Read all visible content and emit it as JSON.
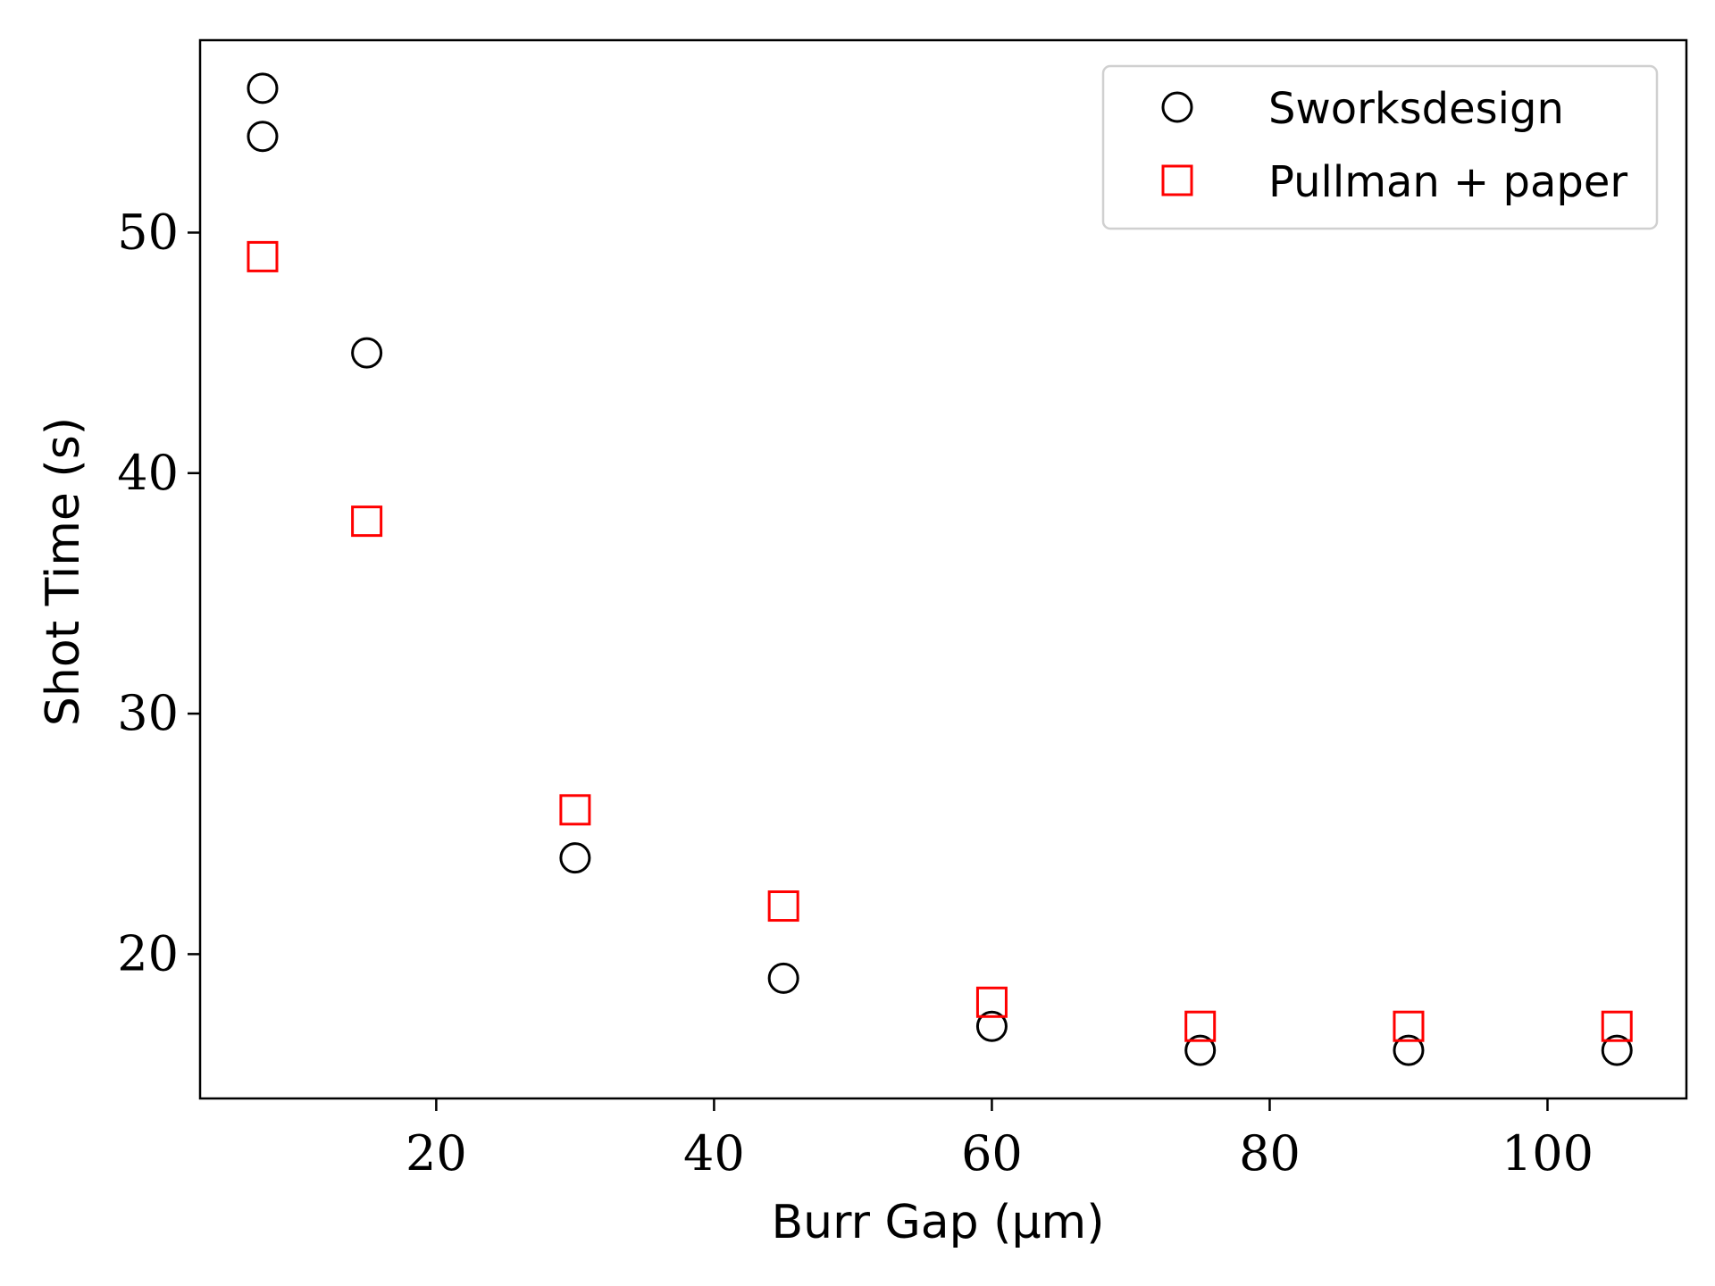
{
  "chart_data": {
    "type": "scatter",
    "xlabel": "Burr Gap (μm)",
    "ylabel": "Shot Time (s)",
    "xlim": [
      3,
      110
    ],
    "ylim": [
      14,
      58
    ],
    "xticks": [
      20,
      40,
      60,
      80,
      100
    ],
    "yticks": [
      20,
      30,
      40,
      50
    ],
    "grid": false,
    "legend_position": "top-right",
    "series": [
      {
        "name": "Sworksdesign",
        "marker": "circle",
        "color": "#000000",
        "points": [
          {
            "x": 7.5,
            "y": 56
          },
          {
            "x": 7.5,
            "y": 54
          },
          {
            "x": 15,
            "y": 45
          },
          {
            "x": 30,
            "y": 24
          },
          {
            "x": 45,
            "y": 19
          },
          {
            "x": 60,
            "y": 17
          },
          {
            "x": 75,
            "y": 16
          },
          {
            "x": 90,
            "y": 16
          },
          {
            "x": 105,
            "y": 16
          }
        ]
      },
      {
        "name": "Pullman + paper",
        "marker": "square",
        "color": "#ff0000",
        "points": [
          {
            "x": 7.5,
            "y": 49
          },
          {
            "x": 15,
            "y": 38
          },
          {
            "x": 30,
            "y": 26
          },
          {
            "x": 45,
            "y": 22
          },
          {
            "x": 60,
            "y": 18
          },
          {
            "x": 75,
            "y": 17
          },
          {
            "x": 90,
            "y": 17
          },
          {
            "x": 105,
            "y": 17
          }
        ]
      }
    ]
  }
}
